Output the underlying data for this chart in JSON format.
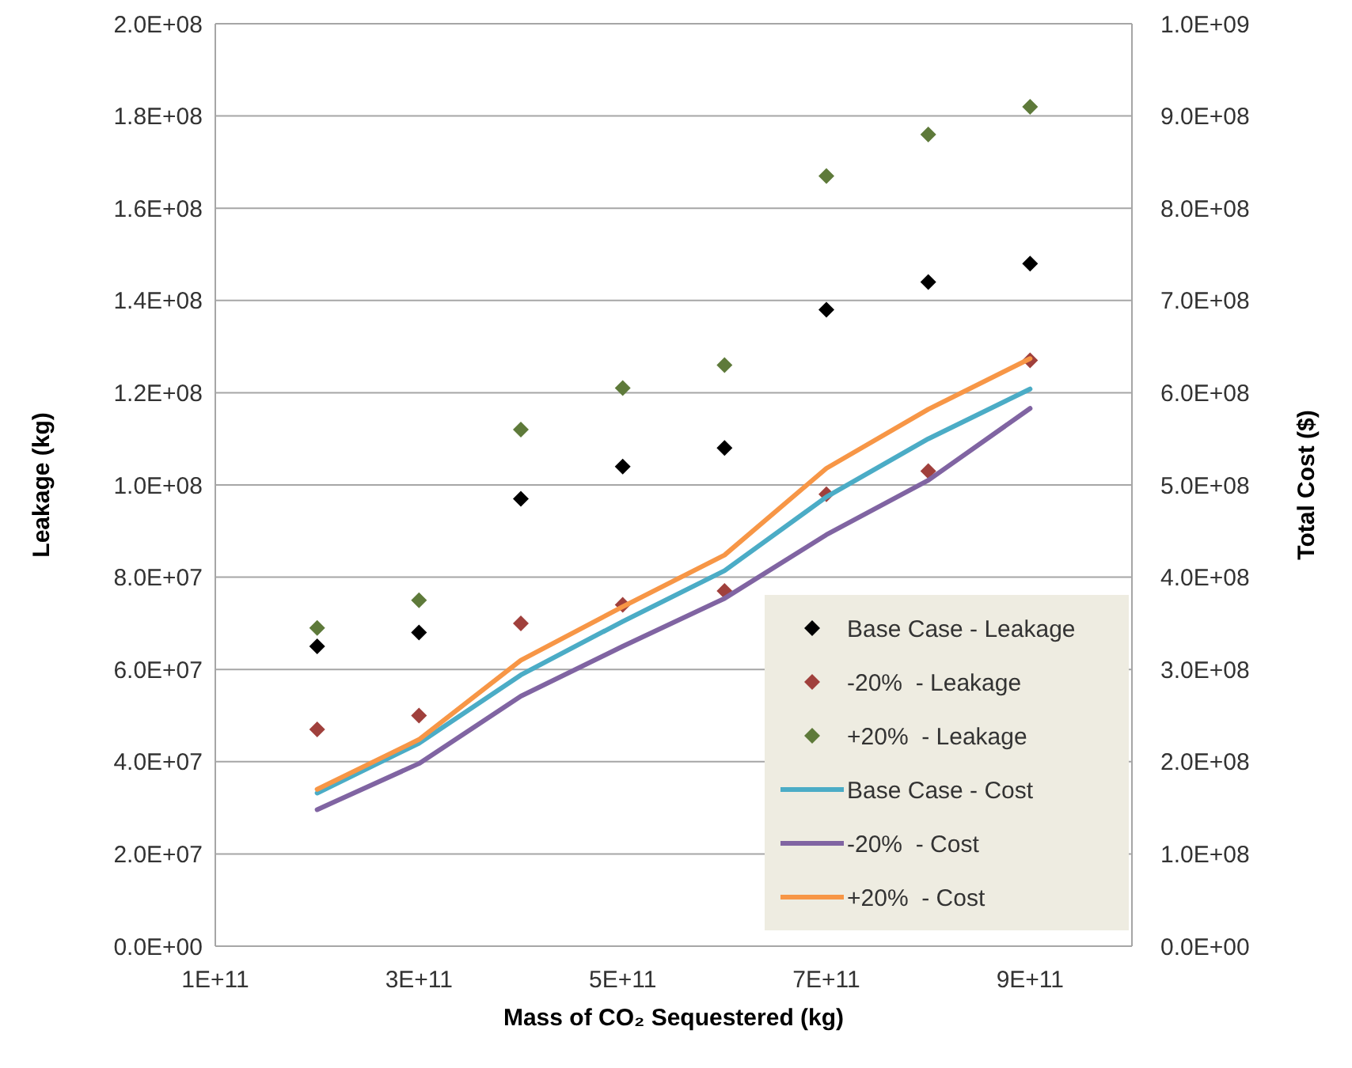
{
  "chart_data": {
    "type": "scatter",
    "xlabel": "Mass of CO₂ Sequestered (kg)",
    "ylabel": "Leakage (kg)",
    "y2label": "Total Cost ($)",
    "x": [
      200000000000.0,
      300000000000.0,
      400000000000.0,
      500000000000.0,
      600000000000.0,
      700000000000.0,
      800000000000.0,
      900000000000.0
    ],
    "xlim": [
      100000000000.0,
      1000000000000.0
    ],
    "xticks": [
      {
        "value": 100000000000.0,
        "label": "1E+11"
      },
      {
        "value": 300000000000.0,
        "label": "3E+11"
      },
      {
        "value": 500000000000.0,
        "label": "5E+11"
      },
      {
        "value": 700000000000.0,
        "label": "7E+11"
      },
      {
        "value": 900000000000.0,
        "label": "9E+11"
      }
    ],
    "ylim": [
      0,
      200000000.0
    ],
    "yticks": [
      {
        "value": 0,
        "label": "0.0E+00"
      },
      {
        "value": 20000000.0,
        "label": "2.0E+07"
      },
      {
        "value": 40000000.0,
        "label": "4.0E+07"
      },
      {
        "value": 60000000.0,
        "label": "6.0E+07"
      },
      {
        "value": 80000000.0,
        "label": "8.0E+07"
      },
      {
        "value": 100000000.0,
        "label": "1.0E+08"
      },
      {
        "value": 120000000.0,
        "label": "1.2E+08"
      },
      {
        "value": 140000000.0,
        "label": "1.4E+08"
      },
      {
        "value": 160000000.0,
        "label": "1.6E+08"
      },
      {
        "value": 180000000.0,
        "label": "1.8E+08"
      },
      {
        "value": 200000000.0,
        "label": "2.0E+08"
      }
    ],
    "y2lim": [
      0,
      1000000000.0
    ],
    "y2ticks": [
      {
        "value": 0,
        "label": "0.0E+00"
      },
      {
        "value": 100000000.0,
        "label": "1.0E+08"
      },
      {
        "value": 200000000.0,
        "label": "2.0E+08"
      },
      {
        "value": 300000000.0,
        "label": "3.0E+08"
      },
      {
        "value": 400000000.0,
        "label": "4.0E+08"
      },
      {
        "value": 500000000.0,
        "label": "5.0E+08"
      },
      {
        "value": 600000000.0,
        "label": "6.0E+08"
      },
      {
        "value": 700000000.0,
        "label": "7.0E+08"
      },
      {
        "value": 800000000.0,
        "label": "8.0E+08"
      },
      {
        "value": 900000000.0,
        "label": "9.0E+08"
      },
      {
        "value": 1000000000.0,
        "label": "1.0E+09"
      }
    ],
    "grid": "y",
    "legend": "bottom right",
    "marker": "diamond",
    "series": [
      {
        "name": "Base Case - Leakage",
        "color": "#000000",
        "values": [
          65000000.0,
          68000000.0,
          97000000.0,
          104000000.0,
          108000000.0,
          138000000.0,
          144000000.0,
          148000000.0
        ]
      },
      {
        "name": "-20%  - Leakage",
        "color": "#a0403c",
        "values": [
          47000000.0,
          50000000.0,
          70000000.0,
          74000000.0,
          77000000.0,
          98000000.0,
          103000000.0,
          127000000.0
        ]
      },
      {
        "name": "+20%  - Leakage",
        "color": "#5e7a3a",
        "values": [
          69000000.0,
          75000000.0,
          112000000.0,
          121000000.0,
          126000000.0,
          167000000.0,
          176000000.0,
          182000000.0
        ]
      },
      {
        "name": "Base Case - Cost",
        "type": "line",
        "axis": "y2",
        "marker": "none",
        "color": "#4bacc6",
        "values": [
          166000000.0,
          220000000.0,
          294000000.0,
          352000000.0,
          407000000.0,
          487000000.0,
          550000000.0,
          604000000.0
        ]
      },
      {
        "name": "-20%  - Cost",
        "type": "line",
        "axis": "y2",
        "marker": "none",
        "color": "#8064a2",
        "values": [
          148000000.0,
          198000000.0,
          271000000.0,
          325000000.0,
          377000000.0,
          446000000.0,
          505000000.0,
          583000000.0
        ]
      },
      {
        "name": "+20%  - Cost",
        "type": "line",
        "axis": "y2",
        "marker": "none",
        "color": "#f79646",
        "values": [
          170000000.0,
          224000000.0,
          310000000.0,
          368000000.0,
          424000000.0,
          518000000.0,
          582000000.0,
          637000000.0
        ]
      }
    ]
  }
}
